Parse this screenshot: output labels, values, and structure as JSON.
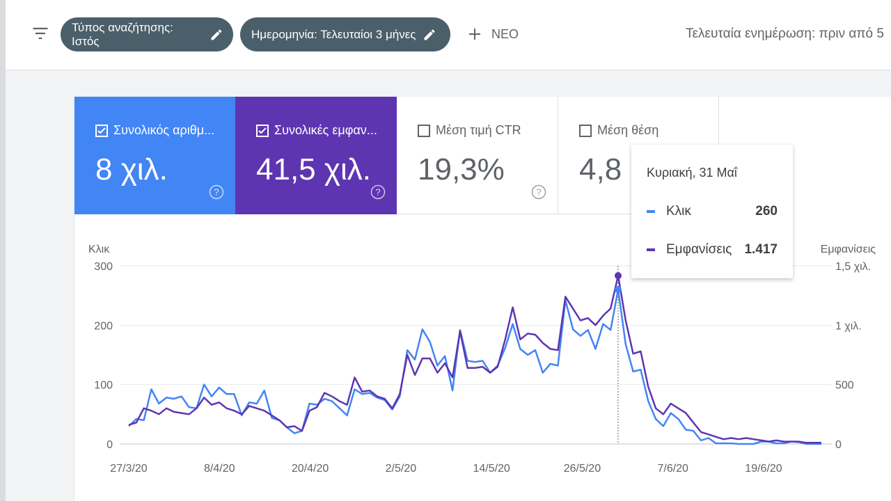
{
  "toolbar": {
    "filter_icon": "filter-icon",
    "chips": [
      {
        "label": "Τύπος αναζήτησης: Ιστός"
      },
      {
        "label": "Ημερομηνία: Τελευταίοι 3 μήνες"
      }
    ],
    "new_label": "ΝΕΟ",
    "last_updated": "Τελευταία ενημέρωση: πριν από 5"
  },
  "metrics": [
    {
      "label": "Συνολικός αριθμ...",
      "value": "8 χιλ.",
      "checked": true,
      "color": "#4285f4"
    },
    {
      "label": "Συνολικές εμφαν...",
      "value": "41,5 χιλ.",
      "checked": true,
      "color": "#5e35b1"
    },
    {
      "label": "Μέση τιμή CTR",
      "value": "19,3%",
      "checked": false
    },
    {
      "label": "Μέση θέση",
      "value": "4,8",
      "checked": false
    }
  ],
  "tooltip": {
    "date": "Κυριακή, 31 Μαΐ",
    "rows": [
      {
        "label": "Κλικ",
        "value": "260",
        "color": "#4285f4"
      },
      {
        "label": "Εμφανίσεις",
        "value": "1.417",
        "color": "#5e35b1"
      }
    ]
  },
  "chart_data": {
    "type": "line",
    "left_axis_label": "Κλικ",
    "right_axis_label": "Εμφανίσεις",
    "left_ticks": [
      "300",
      "200",
      "100",
      "0"
    ],
    "right_ticks": [
      "1,5 χιλ.",
      "1 χιλ.",
      "500",
      "0"
    ],
    "x_tick_labels": [
      "27/3/20",
      "8/4/20",
      "20/4/20",
      "2/5/20",
      "14/5/20",
      "26/5/20",
      "7/6/20",
      "19/6/20"
    ],
    "ylim_left": [
      0,
      300
    ],
    "ylim_right": [
      0,
      1500
    ],
    "highlight_index": 65,
    "series": [
      {
        "name": "Κλικ",
        "axis": "left",
        "color": "#4285f4",
        "values": [
          30,
          42,
          40,
          92,
          68,
          78,
          76,
          80,
          62,
          60,
          100,
          80,
          95,
          84,
          84,
          48,
          70,
          68,
          90,
          44,
          40,
          28,
          18,
          22,
          68,
          66,
          76,
          72,
          60,
          48,
          92,
          84,
          86,
          78,
          74,
          58,
          80,
          158,
          142,
          193,
          172,
          132,
          148,
          90,
          192,
          140,
          138,
          140,
          120,
          132,
          162,
          202,
          160,
          150,
          158,
          120,
          135,
          132,
          242,
          193,
          182,
          192,
          160,
          202,
          192,
          260,
          168,
          122,
          125,
          72,
          42,
          30,
          52,
          42,
          24,
          22,
          6,
          10,
          1,
          1,
          1,
          0,
          0,
          0,
          4,
          4,
          1,
          1,
          4,
          3,
          0,
          0,
          0
        ]
      },
      {
        "name": "Εμφανίσεις",
        "axis": "right",
        "color": "#5e35b1",
        "values": [
          160,
          180,
          300,
          280,
          250,
          300,
          270,
          260,
          250,
          300,
          390,
          330,
          350,
          300,
          280,
          250,
          320,
          300,
          280,
          240,
          200,
          140,
          150,
          110,
          280,
          310,
          430,
          400,
          360,
          330,
          560,
          440,
          450,
          400,
          380,
          300,
          420,
          750,
          580,
          720,
          720,
          600,
          680,
          560,
          950,
          640,
          640,
          650,
          600,
          650,
          880,
          1150,
          880,
          930,
          920,
          850,
          800,
          790,
          1240,
          1140,
          1040,
          1060,
          1000,
          1080,
          1140,
          1417,
          1040,
          760,
          780,
          480,
          300,
          250,
          340,
          300,
          260,
          180,
          100,
          80,
          60,
          40,
          50,
          40,
          50,
          40,
          30,
          20,
          30,
          20,
          20,
          20,
          10,
          10,
          10
        ]
      }
    ]
  }
}
